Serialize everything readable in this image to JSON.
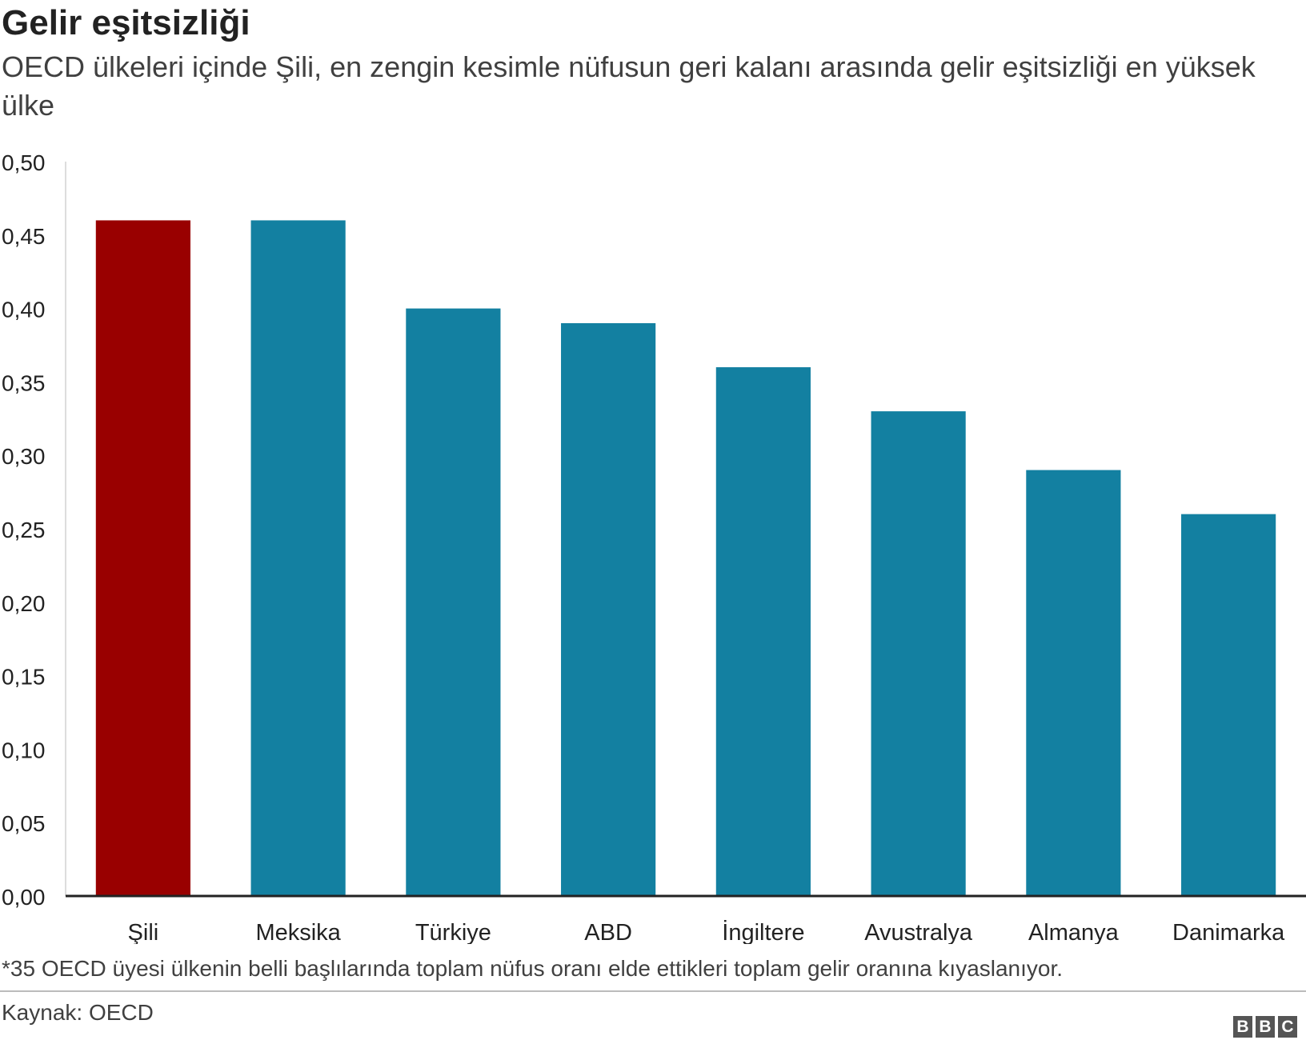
{
  "header": {
    "title": "Gelir eşitsizliği",
    "subtitle": "OECD ülkeleri içinde Şili, en zengin kesimle nüfusun geri kalanı arasında gelir eşitsizliği en yüksek ülke"
  },
  "chart_data": {
    "type": "bar",
    "categories": [
      "Şili",
      "Meksika",
      "Türkiye",
      "ABD",
      "İngiltere",
      "Avustralya",
      "Almanya",
      "Danimarka"
    ],
    "values": [
      0.46,
      0.46,
      0.4,
      0.39,
      0.36,
      0.33,
      0.29,
      0.26
    ],
    "highlight_index": 0,
    "ylim": [
      0,
      0.5
    ],
    "yticks": [
      "0,00",
      "0,05",
      "0,10",
      "0,15",
      "0,20",
      "0,25",
      "0,30",
      "0,35",
      "0,40",
      "0,45",
      "0,50"
    ],
    "grid": false,
    "colors": {
      "highlight": "#990000",
      "default": "#1380A1",
      "axis": "#222222"
    }
  },
  "footer": {
    "note": "*35 OECD üyesi ülkenin belli başlılarında toplam nüfus oranı elde ettikleri toplam gelir oranına kıyaslanıyor.",
    "source": "Kaynak: OECD",
    "logo": [
      "B",
      "B",
      "C"
    ]
  }
}
